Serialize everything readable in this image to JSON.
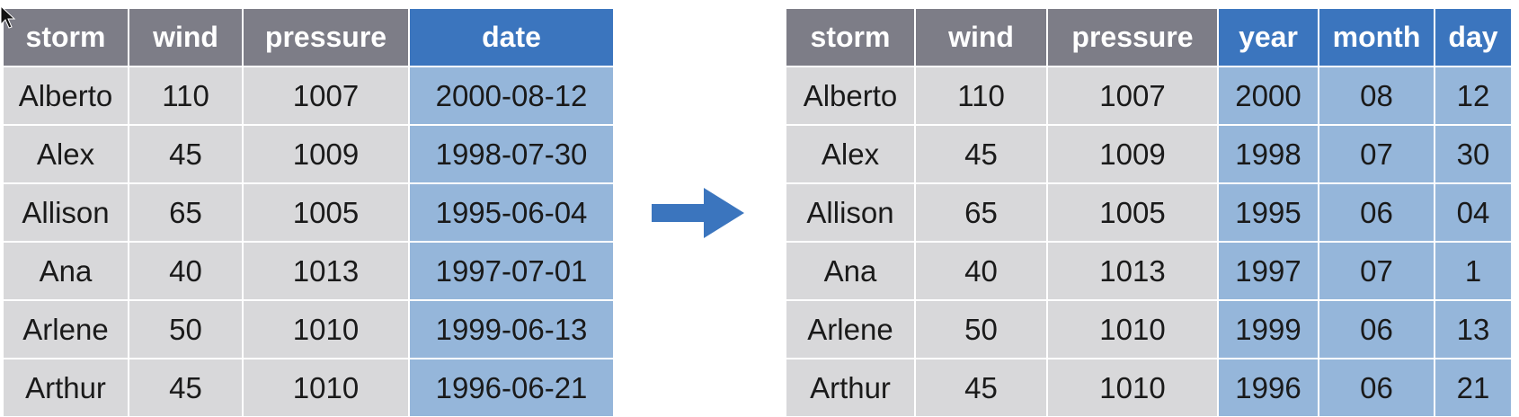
{
  "left_table": {
    "columns": [
      "storm",
      "wind",
      "pressure",
      "date"
    ],
    "highlight_columns": [
      3
    ],
    "rows": [
      [
        "Alberto",
        "110",
        "1007",
        "2000-08-12"
      ],
      [
        "Alex",
        "45",
        "1009",
        "1998-07-30"
      ],
      [
        "Allison",
        "65",
        "1005",
        "1995-06-04"
      ],
      [
        "Ana",
        "40",
        "1013",
        "1997-07-01"
      ],
      [
        "Arlene",
        "50",
        "1010",
        "1999-06-13"
      ],
      [
        "Arthur",
        "45",
        "1010",
        "1996-06-21"
      ]
    ]
  },
  "right_table": {
    "columns": [
      "storm",
      "wind",
      "pressure",
      "year",
      "month",
      "day"
    ],
    "highlight_columns": [
      3,
      4,
      5
    ],
    "rows": [
      [
        "Alberto",
        "110",
        "1007",
        "2000",
        "08",
        "12"
      ],
      [
        "Alex",
        "45",
        "1009",
        "1998",
        "07",
        "30"
      ],
      [
        "Allison",
        "65",
        "1005",
        "1995",
        "06",
        "04"
      ],
      [
        "Ana",
        "40",
        "1013",
        "1997",
        "07",
        "1"
      ],
      [
        "Arlene",
        "50",
        "1010",
        "1999",
        "06",
        "13"
      ],
      [
        "Arthur",
        "45",
        "1010",
        "1996",
        "06",
        "21"
      ]
    ]
  },
  "arrow": {
    "icon": "right-arrow-icon",
    "color": "#3b75be"
  },
  "colors": {
    "header": "#7d7d87",
    "header_highlight": "#3b75be",
    "cell": "#d8d8da",
    "cell_highlight": "#95b6da"
  }
}
